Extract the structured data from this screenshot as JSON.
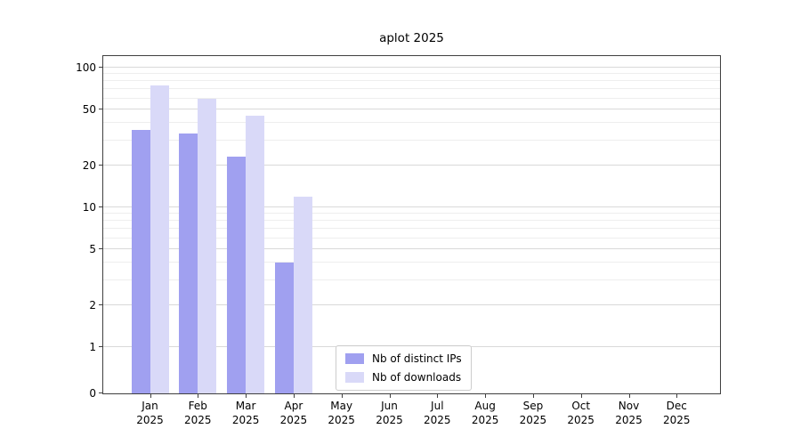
{
  "chart_data": {
    "type": "bar",
    "title": "aplot 2025",
    "categories": [
      "Jan",
      "Feb",
      "Mar",
      "Apr",
      "May",
      "Jun",
      "Jul",
      "Aug",
      "Sep",
      "Oct",
      "Nov",
      "Dec"
    ],
    "year_label": "2025",
    "series": [
      {
        "name": "Nb of distinct IPs",
        "color": "#a0a0f0",
        "values": [
          36,
          34,
          23,
          4,
          0,
          0,
          0,
          0,
          0,
          0,
          0,
          0
        ]
      },
      {
        "name": "Nb of downloads",
        "color": "#d9d9f8",
        "values": [
          75,
          60,
          45,
          12,
          0,
          0,
          0,
          0,
          0,
          0,
          0,
          0
        ]
      }
    ],
    "yscale": "symlog",
    "yticks": [
      0,
      1,
      2,
      5,
      10,
      20,
      50,
      100
    ],
    "minor_yticks": [
      3,
      4,
      6,
      7,
      8,
      9,
      30,
      40,
      60,
      70,
      80,
      90
    ],
    "ylim": [
      0,
      120
    ],
    "grid": "horizontal",
    "legend_position": "inside-lower-center"
  },
  "axes": {
    "grid_major_color": "#d9d9d9",
    "grid_minor_color": "#eeeeee",
    "spine_color": "#404040",
    "tick_color": "#404040"
  }
}
